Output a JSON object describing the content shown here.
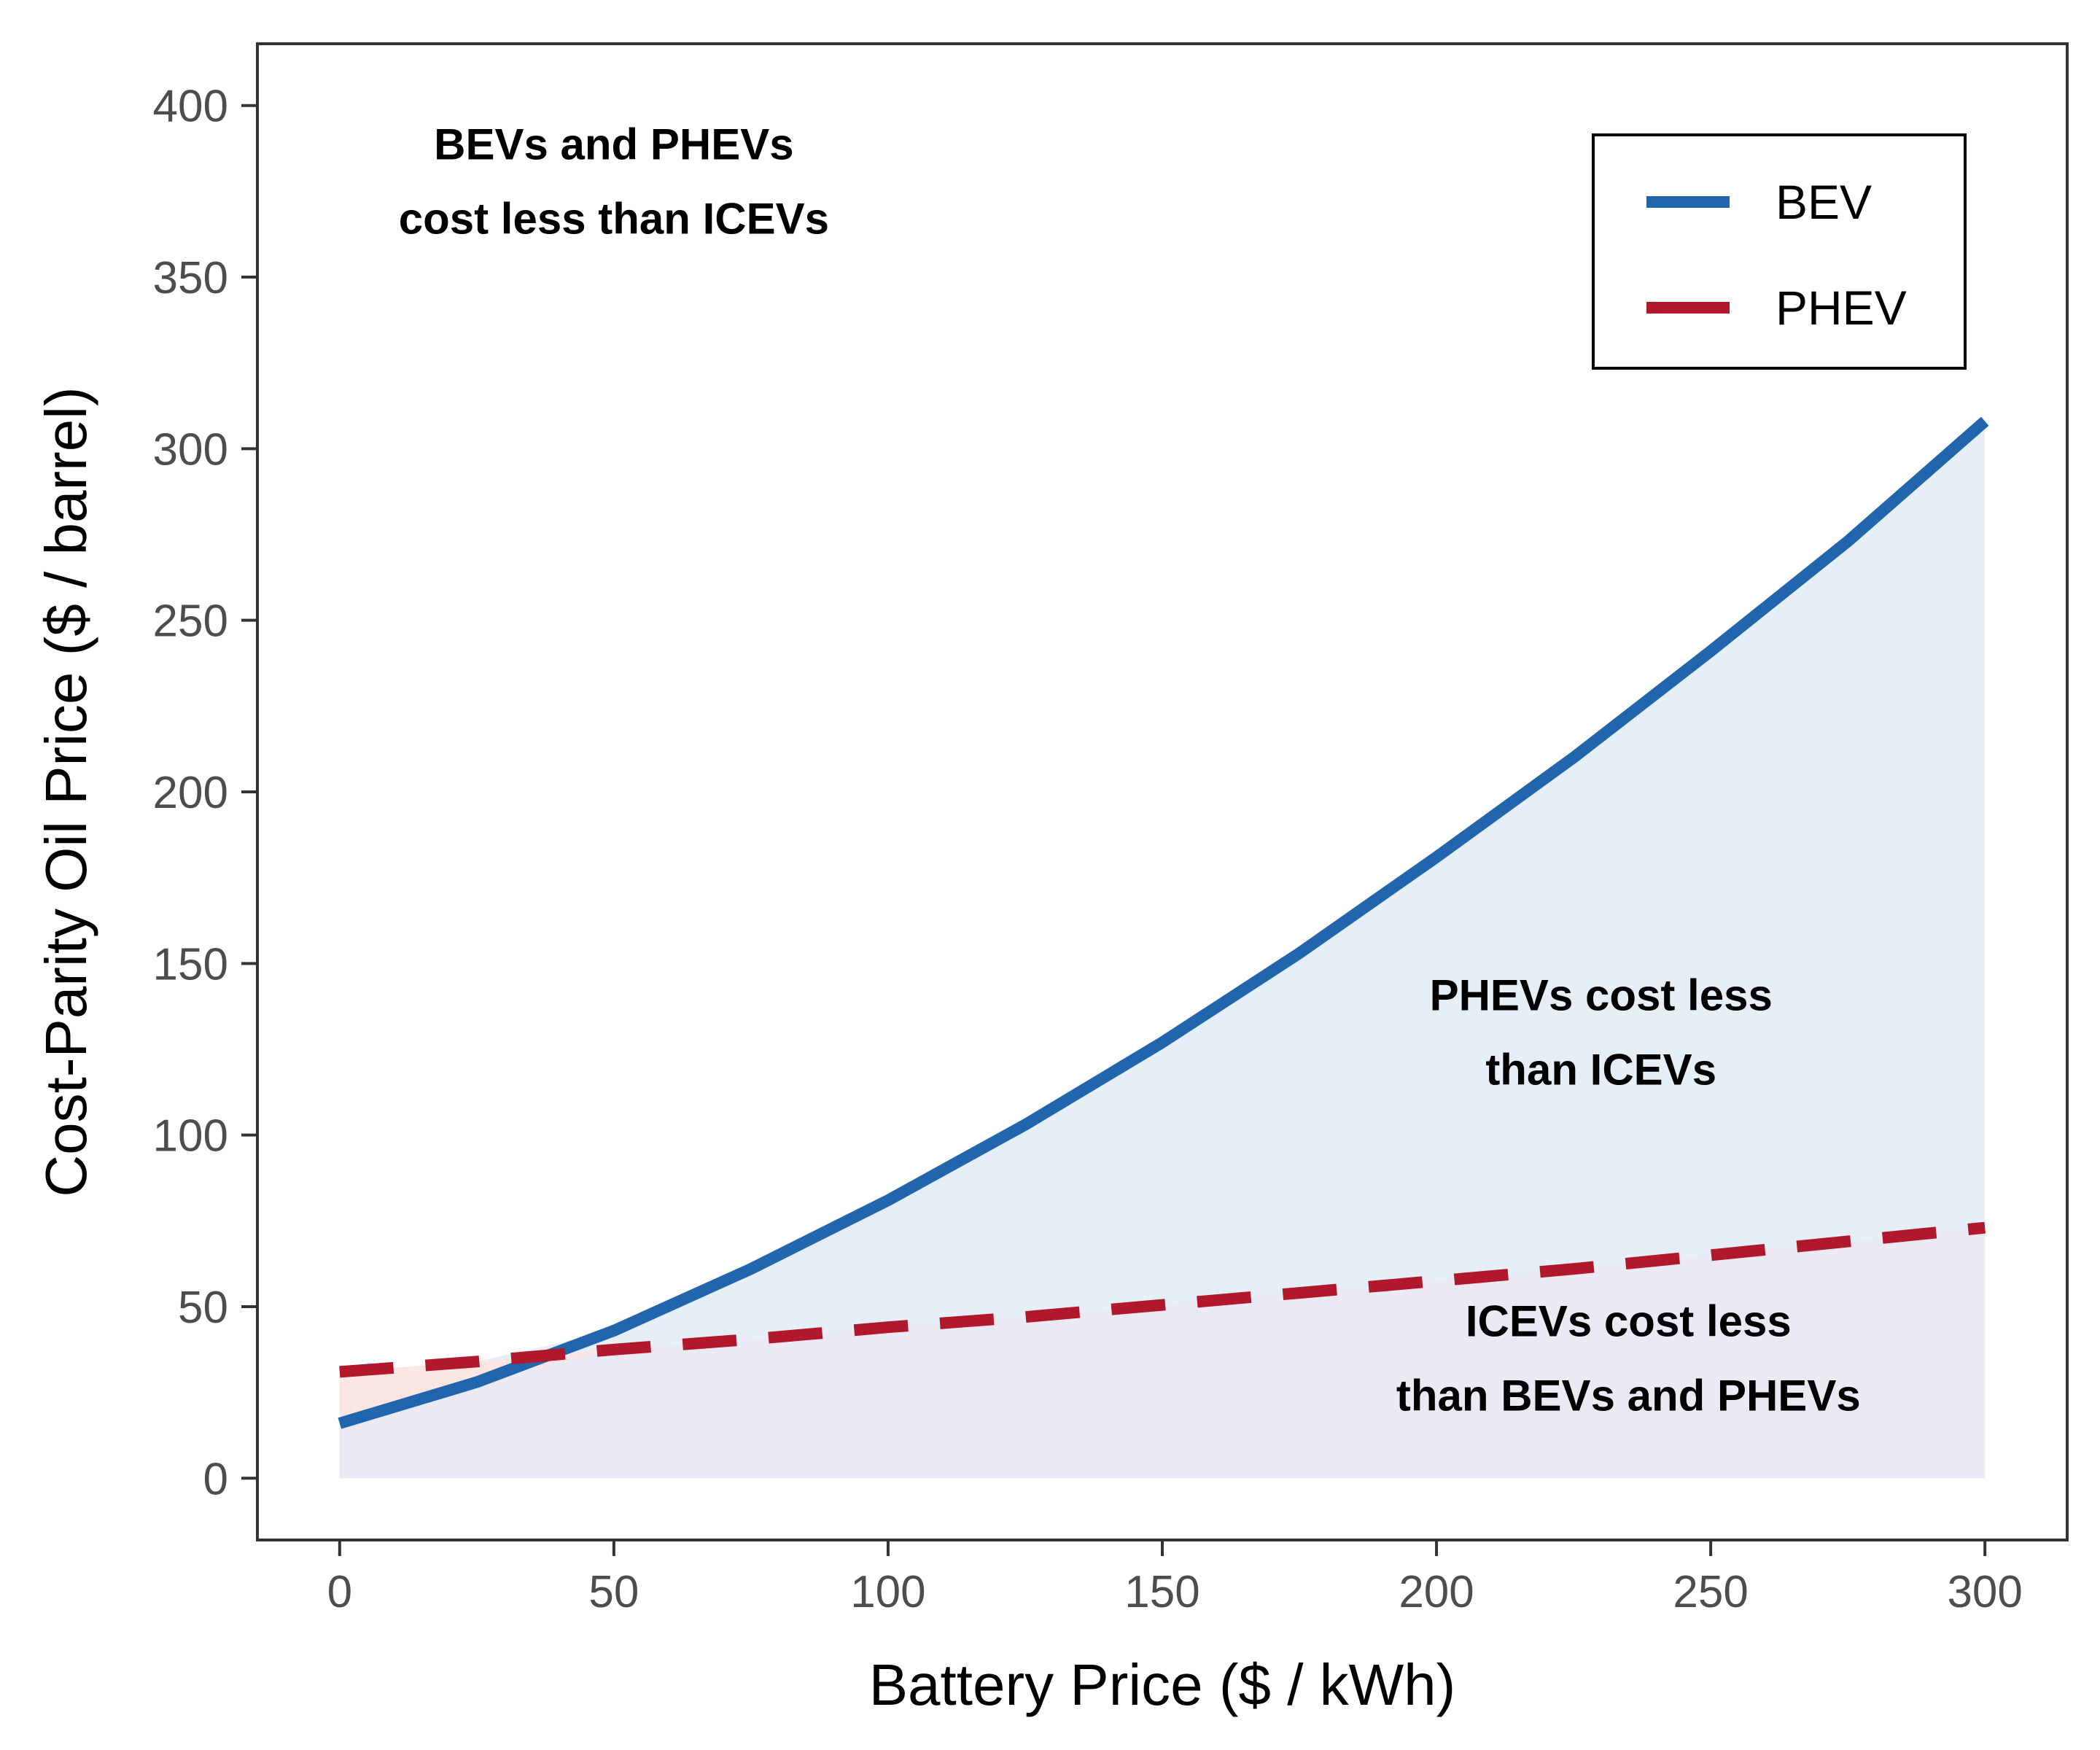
{
  "chart_data": {
    "type": "line",
    "xlabel": "Battery Price ($ / kWh)",
    "ylabel": "Cost-Parity Oil Price ($ / barrel)",
    "xlim": [
      -15,
      315
    ],
    "ylim": [
      -18,
      418
    ],
    "x_ticks": [
      0,
      50,
      100,
      150,
      200,
      250,
      300
    ],
    "y_ticks": [
      0,
      50,
      100,
      150,
      200,
      250,
      300,
      350,
      400
    ],
    "grid": false,
    "legend_position": "top-right",
    "series": [
      {
        "name": "BEV",
        "color": "#2166ac",
        "style": "solid",
        "x": [
          0,
          25,
          50,
          75,
          100,
          125,
          150,
          175,
          200,
          225,
          250,
          275,
          300
        ],
        "y": [
          16,
          28,
          43,
          61,
          81,
          103,
          127,
          153,
          181,
          210,
          241,
          273,
          308
        ]
      },
      {
        "name": "PHEV",
        "color": "#b2182b",
        "style": "dashed",
        "x": [
          0,
          25,
          50,
          75,
          100,
          125,
          150,
          175,
          200,
          225,
          250,
          275,
          300
        ],
        "y": [
          31,
          34,
          37.5,
          40.5,
          44,
          47,
          50.5,
          54,
          57.5,
          61,
          65,
          69,
          73
        ]
      }
    ],
    "regions": [
      {
        "lines": [
          "BEVs and PHEVs",
          "cost less than ICEVs"
        ],
        "x": 50,
        "y": 378
      },
      {
        "lines": [
          "PHEVs cost less",
          "than ICEVs"
        ],
        "x": 230,
        "y": 130
      },
      {
        "lines": [
          "ICEVs cost less",
          "than BEVs and PHEVs"
        ],
        "x": 235,
        "y": 35
      }
    ],
    "fills": {
      "bev_region_color": "#e6eff7",
      "phev_region_color": "#fbe6e3",
      "icev_region_color": "#ebe9f3"
    }
  }
}
